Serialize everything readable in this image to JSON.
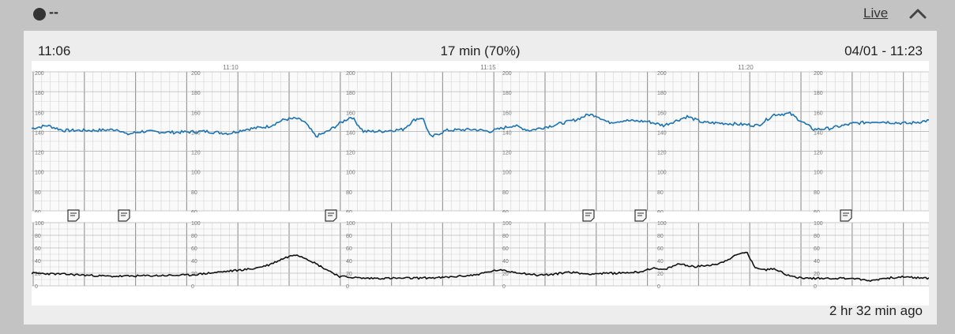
{
  "header": {
    "status_text": "--",
    "live_label": "Live",
    "collapse_icon": "chevron-up-icon"
  },
  "strip": {
    "start_time": "11:06",
    "duration": "17 min (70%)",
    "end_datetime": "04/01 - 11:23",
    "time_markers": [
      "11:10",
      "11:15",
      "11:20"
    ],
    "footer": "2 hr 32 min ago",
    "colors": {
      "fhr_trace": "#1a73b5",
      "toco_trace": "#111111",
      "grid_major": "#9a9a9a",
      "grid_minor": "#d5d5d5"
    }
  },
  "fhr_scale": [
    "200",
    "180",
    "160",
    "140",
    "120",
    "100",
    "80",
    "60"
  ],
  "toco_scale": [
    "100",
    "80",
    "60",
    "40",
    "20",
    "0"
  ],
  "annotations": [
    {
      "icon": "note-icon"
    },
    {
      "icon": "note-icon"
    },
    {
      "icon": "note-icon"
    },
    {
      "icon": "note-icon"
    },
    {
      "icon": "note-icon"
    },
    {
      "icon": "note-icon"
    }
  ]
}
